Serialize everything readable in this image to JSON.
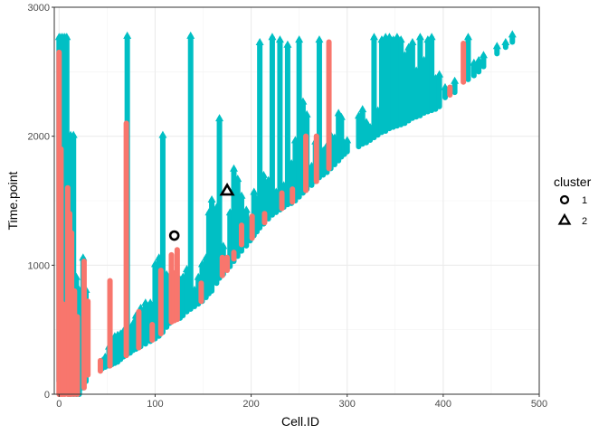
{
  "chart_data": {
    "type": "scatter",
    "xlabel": "Cell.ID",
    "ylabel": "Time.point",
    "xlim": [
      -5,
      500
    ],
    "ylim": [
      0,
      3000
    ],
    "x_ticks": [
      0,
      100,
      200,
      300,
      400,
      500
    ],
    "y_ticks": [
      0,
      1000,
      2000,
      3000
    ],
    "x_tick_labels": [
      "0",
      "100",
      "200",
      "300",
      "400",
      "500"
    ],
    "y_tick_labels": [
      "0",
      "1000",
      "2000",
      "3000"
    ],
    "grid": true,
    "legend_position": "right",
    "legend": {
      "title": "cluster",
      "entries": [
        {
          "label": "1",
          "shape": "circle"
        },
        {
          "label": "2",
          "shape": "triangle"
        }
      ]
    },
    "colors": {
      "cluster1_series": "#F8766D",
      "cluster2_series": "#00BFC4",
      "highlight": "#000000"
    },
    "series": [
      {
        "color": "#00BFC4",
        "segments": [
          {
            "x": 0,
            "y": [
              100,
              2760
            ]
          },
          {
            "x": 2,
            "y": [
              300,
              2760
            ]
          },
          {
            "x": 4,
            "y": [
              500,
              2760
            ]
          },
          {
            "x": 6,
            "y": [
              400,
              2760
            ]
          },
          {
            "x": 8,
            "y": [
              200,
              2760
            ]
          },
          {
            "x": 10,
            "y": [
              0,
              1600
            ]
          },
          {
            "x": 12,
            "y": [
              0,
              2000
            ]
          },
          {
            "x": 15,
            "y": [
              0,
              2000
            ]
          },
          {
            "x": 18,
            "y": [
              0,
              900
            ]
          },
          {
            "x": 21,
            "y": [
              0,
              800
            ]
          },
          {
            "x": 25,
            "y": [
              50,
              1050
            ]
          },
          {
            "x": 28,
            "y": [
              100,
              800
            ]
          },
          {
            "x": 45,
            "y": [
              200,
              250
            ]
          },
          {
            "x": 48,
            "y": [
              210,
              280
            ]
          },
          {
            "x": 52,
            "y": [
              220,
              360
            ]
          },
          {
            "x": 55,
            "y": [
              230,
              420
            ]
          },
          {
            "x": 58,
            "y": [
              240,
              440
            ]
          },
          {
            "x": 61,
            "y": [
              250,
              450
            ]
          },
          {
            "x": 64,
            "y": [
              270,
              460
            ]
          },
          {
            "x": 67,
            "y": [
              290,
              480
            ]
          },
          {
            "x": 71,
            "y": [
              310,
              2770
            ]
          },
          {
            "x": 74,
            "y": [
              320,
              500
            ]
          },
          {
            "x": 77,
            "y": [
              340,
              540
            ]
          },
          {
            "x": 80,
            "y": [
              350,
              600
            ]
          },
          {
            "x": 85,
            "y": [
              370,
              660
            ]
          },
          {
            "x": 90,
            "y": [
              390,
              700
            ]
          },
          {
            "x": 95,
            "y": [
              410,
              700
            ]
          },
          {
            "x": 100,
            "y": [
              430,
              1000
            ]
          },
          {
            "x": 104,
            "y": [
              450,
              1050
            ]
          },
          {
            "x": 108,
            "y": [
              480,
              2000
            ]
          },
          {
            "x": 112,
            "y": [
              520,
              920
            ]
          },
          {
            "x": 115,
            "y": [
              550,
              850
            ]
          },
          {
            "x": 126,
            "y": [
              590,
              880
            ]
          },
          {
            "x": 129,
            "y": [
              610,
              900
            ]
          },
          {
            "x": 133,
            "y": [
              640,
              960
            ]
          },
          {
            "x": 137,
            "y": [
              660,
              2770
            ]
          },
          {
            "x": 141,
            "y": [
              680,
              800
            ]
          },
          {
            "x": 145,
            "y": [
              700,
              900
            ]
          },
          {
            "x": 149,
            "y": [
              720,
              1000
            ]
          },
          {
            "x": 153,
            "y": [
              750,
              1050
            ]
          },
          {
            "x": 156,
            "y": [
              780,
              1400
            ]
          },
          {
            "x": 159,
            "y": [
              800,
              1500
            ]
          },
          {
            "x": 164,
            "y": [
              860,
              1440
            ]
          },
          {
            "x": 167,
            "y": [
              900,
              2130
            ]
          },
          {
            "x": 171,
            "y": [
              930,
              1140
            ]
          },
          {
            "x": 178,
            "y": [
              990,
              1400
            ]
          },
          {
            "x": 182,
            "y": [
              1030,
              1740
            ]
          },
          {
            "x": 186,
            "y": [
              1070,
              1660
            ]
          },
          {
            "x": 190,
            "y": [
              1110,
              1530
            ]
          },
          {
            "x": 195,
            "y": [
              1150,
              1420
            ]
          },
          {
            "x": 199,
            "y": [
              1190,
              1350
            ]
          },
          {
            "x": 203,
            "y": [
              1230,
              1560
            ]
          },
          {
            "x": 206,
            "y": [
              1260,
              1500
            ]
          },
          {
            "x": 209,
            "y": [
              1290,
              2720
            ]
          },
          {
            "x": 213,
            "y": [
              1320,
              1690
            ]
          },
          {
            "x": 218,
            "y": [
              1360,
              1650
            ]
          },
          {
            "x": 222,
            "y": [
              1390,
              2760
            ]
          },
          {
            "x": 226,
            "y": [
              1410,
              1560
            ]
          },
          {
            "x": 230,
            "y": [
              1430,
              2740
            ]
          },
          {
            "x": 234,
            "y": [
              1450,
              1610
            ]
          },
          {
            "x": 238,
            "y": [
              1470,
              2700
            ]
          },
          {
            "x": 242,
            "y": [
              1480,
              1780
            ]
          },
          {
            "x": 246,
            "y": [
              1500,
              1960
            ]
          },
          {
            "x": 250,
            "y": [
              1530,
              2740
            ]
          },
          {
            "x": 254,
            "y": [
              1560,
              2260
            ]
          },
          {
            "x": 258,
            "y": [
              1590,
              2160
            ]
          },
          {
            "x": 263,
            "y": [
              1620,
              1760
            ]
          },
          {
            "x": 267,
            "y": [
              1650,
              1950
            ]
          },
          {
            "x": 271,
            "y": [
              1680,
              2740
            ]
          },
          {
            "x": 275,
            "y": [
              1700,
              1880
            ]
          },
          {
            "x": 279,
            "y": [
              1720,
              1920
            ]
          },
          {
            "x": 283,
            "y": [
              1750,
              2000
            ]
          },
          {
            "x": 287,
            "y": [
              1780,
              1980
            ]
          },
          {
            "x": 291,
            "y": [
              1810,
              2170
            ]
          },
          {
            "x": 294,
            "y": [
              1840,
              2140
            ]
          },
          {
            "x": 297,
            "y": [
              1860,
              1940
            ]
          },
          {
            "x": 300,
            "y": [
              1880,
              1960
            ]
          },
          {
            "x": 312,
            "y": [
              1920,
              2150
            ]
          },
          {
            "x": 316,
            "y": [
              1940,
              2200
            ]
          },
          {
            "x": 320,
            "y": [
              1950,
              2100
            ]
          },
          {
            "x": 324,
            "y": [
              1970,
              2060
            ]
          },
          {
            "x": 328,
            "y": [
              1990,
              2760
            ]
          },
          {
            "x": 332,
            "y": [
              2010,
              2190
            ]
          },
          {
            "x": 336,
            "y": [
              2030,
              2740
            ]
          },
          {
            "x": 340,
            "y": [
              2040,
              2760
            ]
          },
          {
            "x": 344,
            "y": [
              2060,
              2760
            ]
          },
          {
            "x": 348,
            "y": [
              2070,
              2740
            ]
          },
          {
            "x": 352,
            "y": [
              2080,
              2760
            ]
          },
          {
            "x": 356,
            "y": [
              2090,
              2740
            ]
          },
          {
            "x": 360,
            "y": [
              2100,
              2620
            ]
          },
          {
            "x": 364,
            "y": [
              2120,
              2680
            ]
          },
          {
            "x": 368,
            "y": [
              2140,
              2720
            ]
          },
          {
            "x": 372,
            "y": [
              2150,
              2500
            ]
          },
          {
            "x": 376,
            "y": [
              2160,
              2760
            ]
          },
          {
            "x": 380,
            "y": [
              2180,
              2580
            ]
          },
          {
            "x": 384,
            "y": [
              2190,
              2740
            ]
          },
          {
            "x": 388,
            "y": [
              2200,
              2760
            ]
          },
          {
            "x": 392,
            "y": [
              2210,
              2440
            ]
          },
          {
            "x": 396,
            "y": [
              2230,
              2470
            ]
          },
          {
            "x": 402,
            "y": [
              2300,
              2370
            ]
          },
          {
            "x": 412,
            "y": [
              2340,
              2420
            ]
          },
          {
            "x": 426,
            "y": [
              2440,
              2760
            ]
          },
          {
            "x": 432,
            "y": [
              2470,
              2560
            ]
          },
          {
            "x": 437,
            "y": [
              2500,
              2580
            ]
          },
          {
            "x": 442,
            "y": [
              2540,
              2620
            ]
          },
          {
            "x": 456,
            "y": [
              2640,
              2690
            ]
          },
          {
            "x": 465,
            "y": [
              2690,
              2720
            ]
          },
          {
            "x": 472,
            "y": [
              2730,
              2780
            ]
          }
        ]
      },
      {
        "color": "#F8766D",
        "segments": [
          {
            "x": 0,
            "y": [
              0,
              2650
            ]
          },
          {
            "x": 2,
            "y": [
              0,
              1900
            ]
          },
          {
            "x": 4,
            "y": [
              0,
              700
            ]
          },
          {
            "x": 6,
            "y": [
              0,
              400
            ]
          },
          {
            "x": 9,
            "y": [
              0,
              1600
            ]
          },
          {
            "x": 11,
            "y": [
              0,
              1400
            ]
          },
          {
            "x": 13,
            "y": [
              0,
              1250
            ]
          },
          {
            "x": 16,
            "y": [
              0,
              800
            ]
          },
          {
            "x": 19,
            "y": [
              0,
              600
            ]
          },
          {
            "x": 26,
            "y": [
              50,
              1030
            ]
          },
          {
            "x": 30,
            "y": [
              150,
              720
            ]
          },
          {
            "x": 43,
            "y": [
              180,
              260
            ]
          },
          {
            "x": 53,
            "y": [
              220,
              880
            ]
          },
          {
            "x": 70,
            "y": [
              300,
              2100
            ]
          },
          {
            "x": 83,
            "y": [
              360,
              640
            ]
          },
          {
            "x": 97,
            "y": [
              420,
              540
            ]
          },
          {
            "x": 106,
            "y": [
              470,
              960
            ]
          },
          {
            "x": 117,
            "y": [
              560,
              1080
            ]
          },
          {
            "x": 120,
            "y": [
              570,
              940
            ]
          },
          {
            "x": 123,
            "y": [
              580,
              1120
            ]
          },
          {
            "x": 148,
            "y": [
              720,
              860
            ]
          },
          {
            "x": 170,
            "y": [
              920,
              1060
            ]
          },
          {
            "x": 175,
            "y": [
              960,
              1060
            ]
          },
          {
            "x": 182,
            "y": [
              1050,
              1100
            ]
          },
          {
            "x": 190,
            "y": [
              1160,
              1310
            ]
          },
          {
            "x": 201,
            "y": [
              1210,
              1380
            ]
          },
          {
            "x": 214,
            "y": [
              1330,
              1400
            ]
          },
          {
            "x": 232,
            "y": [
              1440,
              1560
            ]
          },
          {
            "x": 243,
            "y": [
              1490,
              1590
            ]
          },
          {
            "x": 257,
            "y": [
              1580,
              2000
            ]
          },
          {
            "x": 268,
            "y": [
              1650,
              2000
            ]
          },
          {
            "x": 281,
            "y": [
              1750,
              2730
            ]
          },
          {
            "x": 407,
            "y": [
              2320,
              2380
            ]
          },
          {
            "x": 421,
            "y": [
              2420,
              2720
            ]
          }
        ]
      }
    ],
    "highlighted_points": [
      {
        "cluster": "1",
        "x": 120,
        "y": 1230
      },
      {
        "cluster": "2",
        "x": 175,
        "y": 1580
      }
    ]
  }
}
